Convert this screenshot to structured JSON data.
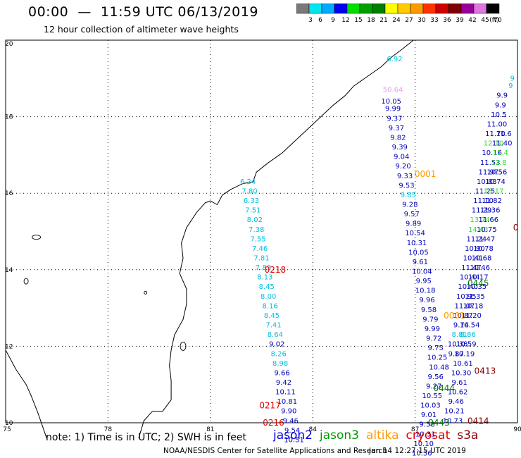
{
  "title": "00:00  —  11:59 UTC 06/13/2019",
  "subtitle": "12 hour collection of altimeter wave heights",
  "legend": {
    "unit": "(ft)",
    "bins": [
      {
        "label": "3",
        "color": "#7a7a7a"
      },
      {
        "label": "6",
        "color": "#00e5ee"
      },
      {
        "label": "9",
        "color": "#00aaff"
      },
      {
        "label": "12",
        "color": "#0000ee"
      },
      {
        "label": "15",
        "color": "#00dd00"
      },
      {
        "label": "18",
        "color": "#00a000"
      },
      {
        "label": "21",
        "color": "#008000"
      },
      {
        "label": "24",
        "color": "#ffff00"
      },
      {
        "label": "27",
        "color": "#ffcc00"
      },
      {
        "label": "30",
        "color": "#ff9900"
      },
      {
        "label": "33",
        "color": "#ff3300"
      },
      {
        "label": "36",
        "color": "#cc0000"
      },
      {
        "label": "39",
        "color": "#800000"
      },
      {
        "label": "42",
        "color": "#990099"
      },
      {
        "label": "45",
        "color": "#dd77dd"
      },
      {
        "label": "70",
        "color": "#000000"
      }
    ]
  },
  "axes": {
    "lon_ticks": [
      "75",
      "78",
      "81",
      "84",
      "87",
      "90"
    ],
    "lat_ticks": [
      "20",
      "18",
      "16",
      "14",
      "12",
      "10"
    ],
    "lon_range": [
      75,
      90
    ],
    "lat_range": [
      10,
      20
    ]
  },
  "tracks": [
    {
      "name": "altika-0001",
      "color": "#00bfdf",
      "points": [
        {
          "lon": 86.4,
          "lat": 19.5,
          "v": "6.92"
        },
        {
          "lon": 86.35,
          "lat": 18.7,
          "v": "50.64",
          "c": "#e8a0e8"
        }
      ]
    },
    {
      "name": "jason2-0001",
      "color": "#0000bb",
      "points": [
        {
          "lon": 86.3,
          "lat": 18.4,
          "v": "10.05"
        },
        {
          "lon": 86.35,
          "lat": 18.2,
          "v": "9.99"
        },
        {
          "lon": 86.4,
          "lat": 17.95,
          "v": "9.37"
        },
        {
          "lon": 86.45,
          "lat": 17.7,
          "v": "9.37"
        },
        {
          "lon": 86.5,
          "lat": 17.45,
          "v": "9.82"
        },
        {
          "lon": 86.55,
          "lat": 17.2,
          "v": "9.39"
        },
        {
          "lon": 86.6,
          "lat": 16.95,
          "v": "9.04"
        },
        {
          "lon": 86.65,
          "lat": 16.7,
          "v": "9.20"
        },
        {
          "lon": 86.7,
          "lat": 16.45,
          "v": "9.33"
        },
        {
          "lon": 86.75,
          "lat": 16.2,
          "v": "9.53"
        },
        {
          "lon": 86.8,
          "lat": 15.95,
          "v": "9.85",
          "c": "#00bfdf"
        },
        {
          "lon": 86.85,
          "lat": 15.7,
          "v": "9.28"
        },
        {
          "lon": 86.9,
          "lat": 15.45,
          "v": "9.57"
        },
        {
          "lon": 86.95,
          "lat": 15.2,
          "v": "9.89"
        },
        {
          "lon": 87.0,
          "lat": 14.95,
          "v": "10.54"
        },
        {
          "lon": 87.05,
          "lat": 14.7,
          "v": "10.31"
        },
        {
          "lon": 87.1,
          "lat": 14.45,
          "v": "10.05"
        },
        {
          "lon": 87.15,
          "lat": 14.2,
          "v": "9.61"
        },
        {
          "lon": 87.2,
          "lat": 13.95,
          "v": "10.04"
        },
        {
          "lon": 87.25,
          "lat": 13.7,
          "v": "9.95"
        },
        {
          "lon": 87.3,
          "lat": 13.45,
          "v": "10.18"
        },
        {
          "lon": 87.35,
          "lat": 13.2,
          "v": "9.96"
        },
        {
          "lon": 87.4,
          "lat": 12.95,
          "v": "9.58"
        },
        {
          "lon": 87.45,
          "lat": 12.7,
          "v": "9.79"
        },
        {
          "lon": 87.5,
          "lat": 12.45,
          "v": "9.99"
        },
        {
          "lon": 87.55,
          "lat": 12.2,
          "v": "9.72"
        },
        {
          "lon": 87.6,
          "lat": 11.95,
          "v": "9.75"
        },
        {
          "lon": 87.65,
          "lat": 11.7,
          "v": "10.25"
        },
        {
          "lon": 87.7,
          "lat": 11.45,
          "v": "10.48"
        }
      ]
    },
    {
      "name": "jason2-0218",
      "color": "#00bfdf",
      "points": [
        {
          "lon": 82.1,
          "lat": 16.3,
          "v": "6.24"
        },
        {
          "lon": 82.15,
          "lat": 16.05,
          "v": "7.80"
        },
        {
          "lon": 82.2,
          "lat": 15.8,
          "v": "6.33"
        },
        {
          "lon": 82.25,
          "lat": 15.55,
          "v": "7.51"
        },
        {
          "lon": 82.3,
          "lat": 15.3,
          "v": "8.02"
        },
        {
          "lon": 82.35,
          "lat": 15.05,
          "v": "7.38"
        },
        {
          "lon": 82.4,
          "lat": 14.8,
          "v": "7.55"
        },
        {
          "lon": 82.45,
          "lat": 14.55,
          "v": "7.46"
        },
        {
          "lon": 82.5,
          "lat": 14.3,
          "v": "7.81"
        },
        {
          "lon": 82.55,
          "lat": 14.05,
          "v": "7.83"
        },
        {
          "lon": 82.6,
          "lat": 13.8,
          "v": "8.13"
        },
        {
          "lon": 82.65,
          "lat": 13.55,
          "v": "8.45"
        },
        {
          "lon": 82.7,
          "lat": 13.3,
          "v": "8.00"
        },
        {
          "lon": 82.75,
          "lat": 13.05,
          "v": "8.16"
        },
        {
          "lon": 82.8,
          "lat": 12.8,
          "v": "8.45"
        },
        {
          "lon": 82.85,
          "lat": 12.55,
          "v": "7.41"
        },
        {
          "lon": 82.9,
          "lat": 12.3,
          "v": "8.64"
        },
        {
          "lon": 82.95,
          "lat": 12.05,
          "v": "9.02",
          "c": "#0000bb"
        },
        {
          "lon": 83.0,
          "lat": 11.8,
          "v": "8.26"
        },
        {
          "lon": 83.05,
          "lat": 11.55,
          "v": "8.98"
        },
        {
          "lon": 83.1,
          "lat": 11.3,
          "v": "9.66",
          "c": "#0000bb"
        },
        {
          "lon": 83.15,
          "lat": 11.05,
          "v": "9.42",
          "c": "#0000bb"
        },
        {
          "lon": 83.2,
          "lat": 10.8,
          "v": "10.11",
          "c": "#0000bb"
        },
        {
          "lon": 83.25,
          "lat": 10.55,
          "v": "10.81",
          "c": "#0000bb"
        },
        {
          "lon": 83.3,
          "lat": 10.3,
          "v": "9.90",
          "c": "#0000bb"
        },
        {
          "lon": 83.35,
          "lat": 10.05,
          "v": "9.46",
          "c": "#0000bb"
        },
        {
          "lon": 83.4,
          "lat": 9.8,
          "v": "9.54",
          "c": "#0000bb"
        },
        {
          "lon": 83.45,
          "lat": 9.55,
          "v": "10.51",
          "c": "#0000bb"
        }
      ]
    },
    {
      "name": "jason2-0444",
      "color": "#0000bb",
      "points": [
        {
          "lon": 87.6,
          "lat": 11.2,
          "v": "9.56"
        },
        {
          "lon": 87.55,
          "lat": 10.95,
          "v": "9.27"
        },
        {
          "lon": 87.5,
          "lat": 10.7,
          "v": "10.55"
        },
        {
          "lon": 87.45,
          "lat": 10.45,
          "v": "10.03"
        },
        {
          "lon": 87.4,
          "lat": 10.2,
          "v": "9.01"
        },
        {
          "lon": 87.35,
          "lat": 9.95,
          "v": "9.38"
        },
        {
          "lon": 87.3,
          "lat": 9.7,
          "v": "10.31"
        },
        {
          "lon": 87.25,
          "lat": 9.45,
          "v": "10.10"
        },
        {
          "lon": 87.2,
          "lat": 9.2,
          "v": "10.36"
        }
      ]
    },
    {
      "name": "jason3-0443",
      "color": "#0000bb",
      "points": [
        {
          "lon": 89.55,
          "lat": 18.55,
          "v": "9.9"
        },
        {
          "lon": 89.5,
          "lat": 18.3,
          "v": "9.9"
        },
        {
          "lon": 89.45,
          "lat": 18.05,
          "v": "10.5"
        },
        {
          "lon": 89.4,
          "lat": 17.8,
          "v": "11.00"
        },
        {
          "lon": 89.35,
          "lat": 17.55,
          "v": "11.70"
        },
        {
          "lon": 89.3,
          "lat": 17.3,
          "v": "12.10",
          "c": "#33dd33"
        },
        {
          "lon": 89.25,
          "lat": 17.05,
          "v": "10.16"
        },
        {
          "lon": 89.2,
          "lat": 16.8,
          "v": "11.53"
        },
        {
          "lon": 89.15,
          "lat": 16.55,
          "v": "11.97"
        },
        {
          "lon": 89.1,
          "lat": 16.3,
          "v": "10.83"
        },
        {
          "lon": 89.05,
          "lat": 16.05,
          "v": "11.25"
        },
        {
          "lon": 89.0,
          "lat": 15.8,
          "v": "11.10"
        },
        {
          "lon": 88.95,
          "lat": 15.55,
          "v": "11.29"
        },
        {
          "lon": 88.9,
          "lat": 15.3,
          "v": "13.74",
          "c": "#33dd33"
        },
        {
          "lon": 88.85,
          "lat": 15.05,
          "v": "14.43",
          "c": "#33dd33"
        },
        {
          "lon": 88.8,
          "lat": 14.8,
          "v": "11.24"
        },
        {
          "lon": 88.75,
          "lat": 14.55,
          "v": "10.90"
        },
        {
          "lon": 88.7,
          "lat": 14.3,
          "v": "10.41"
        },
        {
          "lon": 88.65,
          "lat": 14.05,
          "v": "11.47"
        },
        {
          "lon": 88.6,
          "lat": 13.8,
          "v": "10.44"
        },
        {
          "lon": 88.55,
          "lat": 13.55,
          "v": "10.40"
        },
        {
          "lon": 88.5,
          "lat": 13.3,
          "v": "10.95"
        },
        {
          "lon": 88.45,
          "lat": 13.05,
          "v": "11.07"
        },
        {
          "lon": 88.4,
          "lat": 12.8,
          "v": "10.87"
        },
        {
          "lon": 88.35,
          "lat": 12.55,
          "v": "9.74"
        },
        {
          "lon": 88.3,
          "lat": 12.3,
          "v": "8.81",
          "c": "#00bfdf"
        },
        {
          "lon": 88.25,
          "lat": 12.05,
          "v": "10.38"
        },
        {
          "lon": 88.2,
          "lat": 11.8,
          "v": "9.87"
        }
      ]
    },
    {
      "name": "jason3-0444",
      "color": "#0000bb",
      "points": [
        {
          "lon": 89.6,
          "lat": 17.55,
          "v": "11.6"
        },
        {
          "lon": 89.55,
          "lat": 17.3,
          "v": "11.40"
        },
        {
          "lon": 89.5,
          "lat": 17.05,
          "v": "11.4",
          "c": "#33dd33"
        },
        {
          "lon": 89.45,
          "lat": 16.8,
          "v": "12.8",
          "c": "#33dd33"
        },
        {
          "lon": 89.4,
          "lat": 16.55,
          "v": "10.56"
        },
        {
          "lon": 89.35,
          "lat": 16.3,
          "v": "10.74"
        },
        {
          "lon": 89.3,
          "lat": 16.05,
          "v": "13.17",
          "c": "#33dd33"
        },
        {
          "lon": 89.25,
          "lat": 15.8,
          "v": "11.82"
        },
        {
          "lon": 89.2,
          "lat": 15.55,
          "v": "11.36"
        },
        {
          "lon": 89.15,
          "lat": 15.3,
          "v": "11.66"
        },
        {
          "lon": 89.1,
          "lat": 15.05,
          "v": "10.75"
        },
        {
          "lon": 89.05,
          "lat": 14.8,
          "v": "11.47"
        },
        {
          "lon": 89.0,
          "lat": 14.55,
          "v": "10.78"
        },
        {
          "lon": 88.95,
          "lat": 14.3,
          "v": "10.68"
        },
        {
          "lon": 88.9,
          "lat": 14.05,
          "v": "10.46"
        },
        {
          "lon": 88.85,
          "lat": 13.8,
          "v": "10.17"
        },
        {
          "lon": 88.8,
          "lat": 13.55,
          "v": "10.35"
        },
        {
          "lon": 88.75,
          "lat": 13.3,
          "v": "11.35"
        },
        {
          "lon": 88.7,
          "lat": 13.05,
          "v": "10.18"
        },
        {
          "lon": 88.65,
          "lat": 12.8,
          "v": "11.20"
        },
        {
          "lon": 88.6,
          "lat": 12.55,
          "v": "10.54"
        },
        {
          "lon": 88.55,
          "lat": 12.3,
          "v": "8.86",
          "c": "#00bfdf"
        },
        {
          "lon": 88.5,
          "lat": 12.05,
          "v": "10.59"
        },
        {
          "lon": 88.45,
          "lat": 11.8,
          "v": "10.19"
        },
        {
          "lon": 88.4,
          "lat": 11.55,
          "v": "10.61"
        },
        {
          "lon": 88.35,
          "lat": 11.3,
          "v": "10.30"
        },
        {
          "lon": 88.3,
          "lat": 11.05,
          "v": "9.61"
        },
        {
          "lon": 88.25,
          "lat": 10.8,
          "v": "10.62"
        },
        {
          "lon": 88.2,
          "lat": 10.55,
          "v": "9.46"
        },
        {
          "lon": 88.15,
          "lat": 10.3,
          "v": "10.21"
        },
        {
          "lon": 88.1,
          "lat": 10.05,
          "v": "10.73"
        }
      ]
    },
    {
      "name": "extra-right",
      "color": "#00bfdf",
      "points": [
        {
          "lon": 89.85,
          "lat": 19.0,
          "v": "9"
        },
        {
          "lon": 89.8,
          "lat": 18.8,
          "v": "9"
        }
      ]
    }
  ],
  "pass_labels": [
    {
      "text": "0001",
      "lon": 87.3,
      "lat": 16.5,
      "color": "#ff9900"
    },
    {
      "text": "0218",
      "lon": 82.9,
      "lat": 14.0,
      "color": "#dd0000"
    },
    {
      "text": "0445",
      "lon": 88.85,
      "lat": 13.65,
      "color": "#007700"
    },
    {
      "text": "0001",
      "lon": 88.15,
      "lat": 12.8,
      "color": "#ff9900"
    },
    {
      "text": "0413",
      "lon": 89.05,
      "lat": 11.35,
      "color": "#880000"
    },
    {
      "text": "0444",
      "lon": 87.85,
      "lat": 10.9,
      "color": "#007700"
    },
    {
      "text": "0217",
      "lon": 82.75,
      "lat": 10.45,
      "color": "#dd0000"
    },
    {
      "text": "0216",
      "lon": 82.85,
      "lat": 10.0,
      "color": "#dd0000"
    },
    {
      "text": "0443",
      "lon": 87.7,
      "lat": 10.0,
      "color": "#007700"
    },
    {
      "text": "0414",
      "lon": 88.85,
      "lat": 10.05,
      "color": "#880000"
    },
    {
      "text": "0",
      "lon": 89.95,
      "lat": 15.1,
      "color": "#880000"
    }
  ],
  "satellites": [
    {
      "name": "jason2",
      "color": "#0000dd"
    },
    {
      "name": "jason3",
      "color": "#009900"
    },
    {
      "name": "altika",
      "color": "#ff9900"
    },
    {
      "name": "cryosat",
      "color": "#dd0000"
    },
    {
      "name": "s3a",
      "color": "#880000"
    }
  ],
  "note": "note: 1) Time is in UTC; 2) SWH is in feet",
  "credit": "NOAA/NESDIS Center for Satellite Applications and Research",
  "timestamp": "Jun 14 12:27:15 UTC 2019"
}
